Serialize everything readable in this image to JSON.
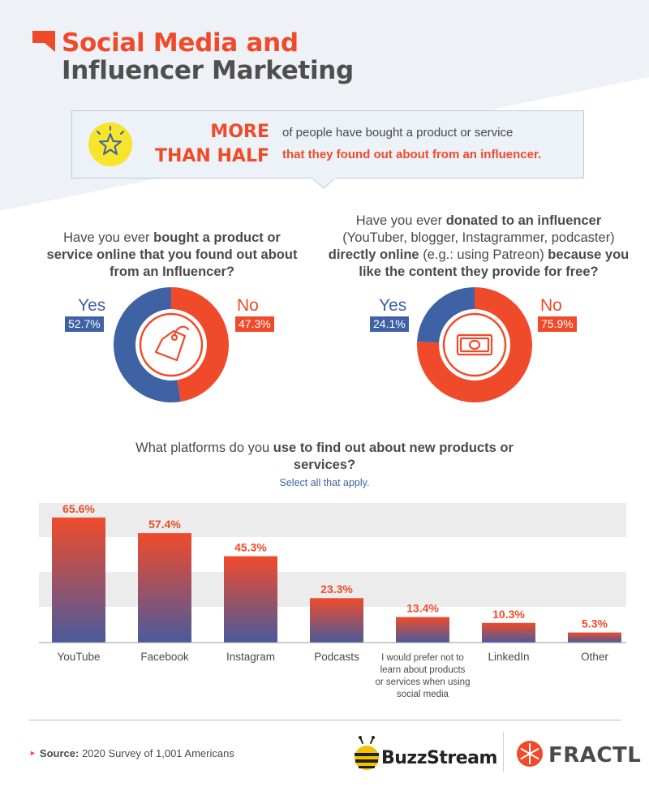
{
  "title": {
    "line1": "Social Media and",
    "line2": "Influencer Marketing"
  },
  "callout": {
    "big_line1": "MORE",
    "big_line2": "THAN HALF",
    "small_line1": "of people have bought a product or service",
    "small_line2": "that they found out about from an influencer."
  },
  "q1": {
    "pre": "Have you ever ",
    "bold": "bought a product or service online that you found out about from an Influencer?",
    "post": ""
  },
  "q2": {
    "pre": "Have you ever ",
    "bold1": "donated to an influencer",
    "mid1": " (YouTuber, blogger, Instagrammer, podcaster) ",
    "bold2": "directly online",
    "mid2": " (e.g.: using Patreon) ",
    "bold3": "because you like the content they provide for free?"
  },
  "bar_question": {
    "pre": "What platforms do you ",
    "bold": "use to find out about new products or services?",
    "sub": "Select all that apply."
  },
  "footer": {
    "source_label": "Source:",
    "source_text": " 2020 Survey of 1,001 Americans",
    "brand1": "BuzzStream",
    "brand2": "FRACTL"
  },
  "colors": {
    "accent": "#ef4b2b",
    "blue": "#3f62a4",
    "text": "#4a4a4a"
  },
  "icons": {
    "title": "red-flag-icon",
    "callout": "star-icon",
    "pie1": "price-tag-icon",
    "pie2": "money-bill-icon"
  },
  "chart_data": [
    {
      "type": "pie",
      "labels": [
        "Yes",
        "No"
      ],
      "values": [
        52.7,
        47.3
      ],
      "value_labels": [
        "52.7%",
        "47.3%"
      ],
      "colors": [
        "#3f62a4",
        "#ef4b2b"
      ]
    },
    {
      "type": "pie",
      "labels": [
        "Yes",
        "No"
      ],
      "values": [
        24.1,
        75.9
      ],
      "value_labels": [
        "24.1%",
        "75.9%"
      ],
      "colors": [
        "#3f62a4",
        "#ef4b2b"
      ]
    },
    {
      "type": "bar",
      "categories": [
        "YouTube",
        "Facebook",
        "Instagram",
        "Podcasts",
        "I would prefer not to learn about products or services when using social media",
        "LinkedIn",
        "Other"
      ],
      "values": [
        65.6,
        57.4,
        45.3,
        23.3,
        13.4,
        10.3,
        5.3
      ],
      "value_labels": [
        "65.6%",
        "57.4%",
        "45.3%",
        "23.3%",
        "13.4%",
        "10.3%",
        "5.3%"
      ],
      "ylim": [
        0,
        80
      ],
      "grid_bands": true
    }
  ]
}
